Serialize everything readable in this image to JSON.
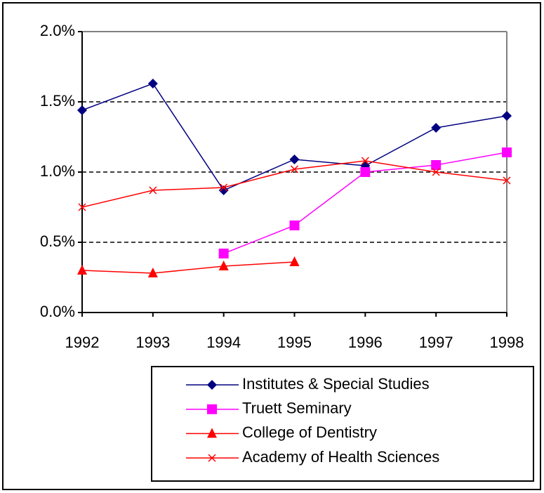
{
  "chart_data": {
    "type": "line",
    "categories": [
      "1992",
      "1993",
      "1994",
      "1995",
      "1996",
      "1997",
      "1998"
    ],
    "series": [
      {
        "name": "Institutes & Special Studies",
        "color": "#000080",
        "marker": "diamond",
        "values": [
          1.44,
          1.63,
          0.87,
          1.09,
          1.045,
          1.315,
          1.4
        ]
      },
      {
        "name": "Truett Seminary",
        "color": "#ff00ff",
        "marker": "square",
        "values": [
          null,
          null,
          0.42,
          0.62,
          1.0,
          1.05,
          1.14
        ]
      },
      {
        "name": "College of Dentistry",
        "color": "#ff0000",
        "marker": "triangle",
        "values": [
          0.3,
          0.28,
          0.33,
          0.36,
          null,
          null,
          null
        ]
      },
      {
        "name": "Academy of Health Sciences",
        "color": "#ff0000",
        "marker": "x",
        "values": [
          0.75,
          0.87,
          0.89,
          1.02,
          1.08,
          1.0,
          0.94
        ]
      }
    ],
    "ylim": [
      0,
      2
    ],
    "yticks": [
      {
        "value": 0,
        "label": "0.0%"
      },
      {
        "value": 0.5,
        "label": "0.5%"
      },
      {
        "value": 1,
        "label": "1.0%"
      },
      {
        "value": 1.5,
        "label": "1.5%"
      },
      {
        "value": 2,
        "label": "2.0%"
      }
    ],
    "grid": true,
    "legend": "bottom-right"
  }
}
